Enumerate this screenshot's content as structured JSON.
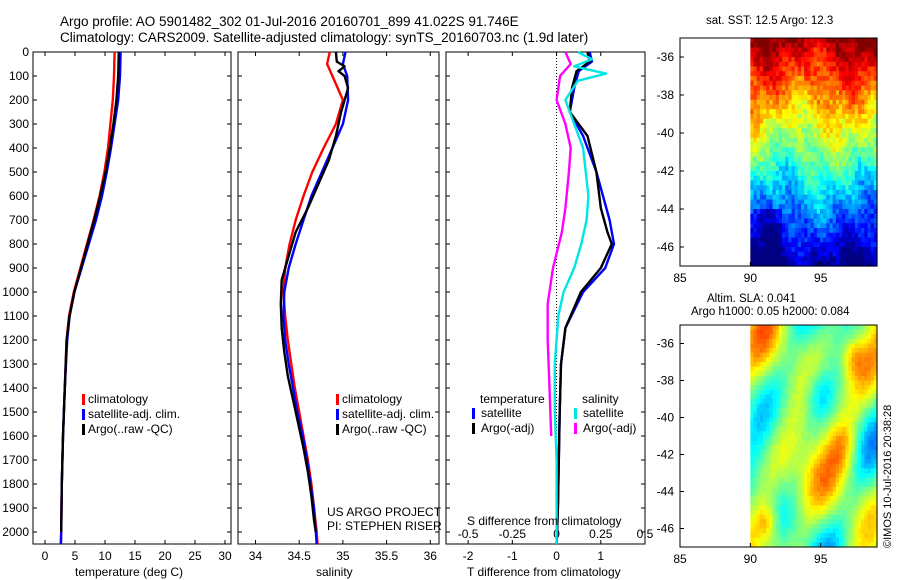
{
  "header": {
    "title_line1": "Argo profile: AO 5901482_302 01-Jul-2016 20160701_899 41.022S 91.746E",
    "title_line2": "Climatology: CARS2009. Satellite-adjusted climatology: synTS_20160703.nc (1.9d later)"
  },
  "colors": {
    "climatology": "#ff0000",
    "satellite": "#0000ff",
    "argo": "#000000",
    "salt_satellite": "#00e5e5",
    "salt_argo": "#ff00ff"
  },
  "chart_data": [
    {
      "id": "temperature",
      "type": "line",
      "xlabel": "temperature (deg C)",
      "ylabel": "",
      "xlim": [
        -2,
        31
      ],
      "ylim": [
        2050,
        0
      ],
      "xticks": [
        0,
        5,
        10,
        15,
        20,
        25,
        30
      ],
      "yticks": [
        0,
        100,
        200,
        300,
        400,
        500,
        600,
        700,
        800,
        900,
        1000,
        1100,
        1200,
        1300,
        1400,
        1500,
        1600,
        1700,
        1800,
        1900,
        2000
      ],
      "legend": [
        "climatology",
        "satellite-adj. clim.",
        "Argo(..raw -QC)"
      ],
      "series": [
        {
          "name": "climatology",
          "color": "#ff0000",
          "points": [
            [
              11.6,
              0
            ],
            [
              11.5,
              100
            ],
            [
              11.3,
              200
            ],
            [
              10.9,
              300
            ],
            [
              10.5,
              400
            ],
            [
              9.9,
              500
            ],
            [
              9.1,
              600
            ],
            [
              8.1,
              700
            ],
            [
              7.0,
              800
            ],
            [
              5.9,
              900
            ],
            [
              4.8,
              1000
            ],
            [
              4.0,
              1100
            ],
            [
              3.6,
              1200
            ],
            [
              3.3,
              1400
            ],
            [
              3.0,
              1600
            ],
            [
              2.8,
              1800
            ],
            [
              2.7,
              2000
            ],
            [
              2.65,
              2050
            ]
          ]
        },
        {
          "name": "satellite-adj. clim.",
          "color": "#0000ff",
          "points": [
            [
              12.6,
              0
            ],
            [
              12.5,
              100
            ],
            [
              12.2,
              200
            ],
            [
              11.6,
              300
            ],
            [
              11.0,
              400
            ],
            [
              10.3,
              500
            ],
            [
              9.5,
              600
            ],
            [
              8.5,
              700
            ],
            [
              7.3,
              800
            ],
            [
              6.1,
              900
            ],
            [
              4.9,
              1000
            ],
            [
              4.1,
              1100
            ],
            [
              3.7,
              1200
            ],
            [
              3.3,
              1400
            ],
            [
              3.0,
              1600
            ],
            [
              2.8,
              1800
            ],
            [
              2.7,
              2000
            ],
            [
              2.65,
              2050
            ]
          ]
        },
        {
          "name": "Argo(..raw -QC)",
          "color": "#000000",
          "points": [
            [
              12.3,
              0
            ],
            [
              12.2,
              100
            ],
            [
              11.9,
              200
            ],
            [
              11.4,
              300
            ],
            [
              10.8,
              400
            ],
            [
              10.1,
              500
            ],
            [
              9.2,
              600
            ],
            [
              8.2,
              700
            ],
            [
              7.1,
              800
            ],
            [
              6.0,
              900
            ],
            [
              4.9,
              1000
            ],
            [
              4.1,
              1100
            ],
            [
              3.6,
              1200
            ],
            [
              3.3,
              1400
            ],
            [
              3.0,
              1600
            ],
            [
              2.8,
              1800
            ],
            [
              2.7,
              2000
            ]
          ]
        }
      ]
    },
    {
      "id": "salinity",
      "type": "line",
      "xlabel": "salinity",
      "ylabel": "",
      "xlim": [
        33.8,
        36.1
      ],
      "ylim": [
        2050,
        0
      ],
      "xticks": [
        34,
        34.5,
        35,
        35.5,
        36
      ],
      "xticklabels": [
        "34",
        "34.5",
        "35",
        "35.5",
        "36"
      ],
      "legend": [
        "climatology",
        "satellite-adj. clim.",
        "Argo(..raw -QC)"
      ],
      "annotations": [
        "US ARGO PROJECT",
        "PI: STEPHEN RISER"
      ],
      "series": [
        {
          "name": "climatology",
          "color": "#ff0000",
          "points": [
            [
              34.85,
              0
            ],
            [
              34.82,
              50
            ],
            [
              34.88,
              100
            ],
            [
              35.0,
              200
            ],
            [
              34.92,
              300
            ],
            [
              34.78,
              400
            ],
            [
              34.65,
              500
            ],
            [
              34.55,
              600
            ],
            [
              34.46,
              700
            ],
            [
              34.39,
              800
            ],
            [
              34.34,
              900
            ],
            [
              34.32,
              1000
            ],
            [
              34.34,
              1100
            ],
            [
              34.37,
              1200
            ],
            [
              34.41,
              1300
            ],
            [
              34.45,
              1400
            ],
            [
              34.5,
              1500
            ],
            [
              34.55,
              1600
            ],
            [
              34.6,
              1700
            ],
            [
              34.64,
              1800
            ],
            [
              34.67,
              1900
            ],
            [
              34.7,
              2000
            ],
            [
              34.71,
              2050
            ]
          ]
        },
        {
          "name": "satellite-adj. clim.",
          "color": "#0000ff",
          "points": [
            [
              35.03,
              0
            ],
            [
              35.0,
              50
            ],
            [
              35.05,
              100
            ],
            [
              35.06,
              200
            ],
            [
              35.0,
              300
            ],
            [
              34.88,
              400
            ],
            [
              34.76,
              500
            ],
            [
              34.64,
              600
            ],
            [
              34.55,
              700
            ],
            [
              34.46,
              800
            ],
            [
              34.38,
              900
            ],
            [
              34.33,
              1000
            ],
            [
              34.32,
              1100
            ],
            [
              34.34,
              1200
            ],
            [
              34.38,
              1300
            ],
            [
              34.43,
              1400
            ],
            [
              34.48,
              1500
            ],
            [
              34.54,
              1600
            ],
            [
              34.59,
              1700
            ],
            [
              34.63,
              1800
            ],
            [
              34.67,
              1900
            ],
            [
              34.69,
              2000
            ],
            [
              34.7,
              2050
            ]
          ]
        },
        {
          "name": "Argo(..raw -QC)",
          "color": "#000000",
          "points": [
            [
              34.92,
              0
            ],
            [
              34.93,
              40
            ],
            [
              35.02,
              60
            ],
            [
              34.95,
              80
            ],
            [
              35.02,
              100
            ],
            [
              35.06,
              150
            ],
            [
              35.02,
              200
            ],
            [
              34.98,
              250
            ],
            [
              34.92,
              350
            ],
            [
              34.84,
              450
            ],
            [
              34.72,
              550
            ],
            [
              34.6,
              650
            ],
            [
              34.46,
              750
            ],
            [
              34.38,
              850
            ],
            [
              34.3,
              950
            ],
            [
              34.29,
              1050
            ],
            [
              34.3,
              1150
            ],
            [
              34.33,
              1250
            ],
            [
              34.37,
              1350
            ],
            [
              34.43,
              1450
            ],
            [
              34.49,
              1550
            ],
            [
              34.55,
              1650
            ],
            [
              34.6,
              1750
            ],
            [
              34.64,
              1850
            ],
            [
              34.67,
              1950
            ],
            [
              34.69,
              2000
            ]
          ]
        }
      ]
    },
    {
      "id": "differences",
      "type": "line",
      "xlabel": "T difference from climatology",
      "top_xlabel": "S difference from climatology",
      "xlim": [
        -2.5,
        2.0
      ],
      "ylim": [
        2050,
        0
      ],
      "xticks": [
        -2,
        -1,
        0,
        1
      ],
      "xticklabels": [
        "-2",
        "-1",
        "0",
        "1"
      ],
      "top_xticks": [
        -0.5,
        -0.25,
        0,
        0.25,
        0.5
      ],
      "top_xticklabels": [
        "-0.5",
        "-0.25",
        "0",
        "0.25",
        "0.5"
      ],
      "zero_line": "dotted",
      "legend_headers": [
        "temperature",
        "salinity"
      ],
      "legend_temperature": [
        "satellite",
        "Argo(-adj)"
      ],
      "legend_salinity": [
        "satellite",
        "Argo(-adj)"
      ],
      "series": [
        {
          "name": "temperature satellite",
          "color": "#0000ff",
          "units": "temperature",
          "points": [
            [
              0.75,
              0
            ],
            [
              0.8,
              40
            ],
            [
              0.5,
              80
            ],
            [
              0.4,
              150
            ],
            [
              0.3,
              250
            ],
            [
              0.6,
              350
            ],
            [
              0.9,
              500
            ],
            [
              1.2,
              700
            ],
            [
              1.3,
              800
            ],
            [
              1.1,
              900
            ],
            [
              0.6,
              1000
            ],
            [
              0.2,
              1150
            ],
            [
              0.1,
              1300
            ],
            [
              0.07,
              1500
            ],
            [
              0.05,
              1700
            ],
            [
              0.03,
              1900
            ],
            [
              0.0,
              2050
            ]
          ]
        },
        {
          "name": "temperature Argo(-adj)",
          "color": "#000000",
          "units": "temperature",
          "points": [
            [
              0.7,
              0
            ],
            [
              0.75,
              40
            ],
            [
              0.45,
              80
            ],
            [
              0.35,
              150
            ],
            [
              0.3,
              250
            ],
            [
              0.7,
              350
            ],
            [
              0.9,
              500
            ],
            [
              1.0,
              650
            ],
            [
              1.15,
              750
            ],
            [
              1.25,
              800
            ],
            [
              1.0,
              900
            ],
            [
              0.55,
              1000
            ],
            [
              0.2,
              1150
            ],
            [
              0.1,
              1300
            ],
            [
              0.07,
              1500
            ],
            [
              0.05,
              1700
            ],
            [
              0.03,
              1900
            ],
            [
              0.0,
              2050
            ]
          ]
        },
        {
          "name": "salinity satellite",
          "color": "#00e5e5",
          "units": "salinity",
          "points": [
            [
              0.12,
              0
            ],
            [
              0.2,
              30
            ],
            [
              0.1,
              60
            ],
            [
              0.28,
              90
            ],
            [
              0.12,
              120
            ],
            [
              0.05,
              200
            ],
            [
              0.1,
              300
            ],
            [
              0.15,
              400
            ],
            [
              0.18,
              600
            ],
            [
              0.17,
              700
            ],
            [
              0.14,
              800
            ],
            [
              0.1,
              900
            ],
            [
              0.04,
              1000
            ],
            [
              0.01,
              1100
            ],
            [
              -0.01,
              1300
            ],
            [
              -0.01,
              1500
            ],
            [
              0.0,
              1700
            ],
            [
              0.0,
              1900
            ],
            [
              0.0,
              2050
            ]
          ]
        },
        {
          "name": "salinity Argo(-adj)",
          "color": "#ff00ff",
          "units": "salinity",
          "points": [
            [
              0.05,
              0
            ],
            [
              0.08,
              50
            ],
            [
              0.02,
              100
            ],
            [
              0.0,
              200
            ],
            [
              0.05,
              300
            ],
            [
              0.08,
              400
            ],
            [
              0.07,
              500
            ],
            [
              0.05,
              650
            ],
            [
              0.03,
              750
            ],
            [
              -0.02,
              900
            ],
            [
              -0.05,
              1050
            ],
            [
              -0.05,
              1200
            ],
            [
              -0.04,
              1400
            ],
            [
              -0.03,
              1600
            ]
          ]
        }
      ]
    },
    {
      "id": "sst_map",
      "type": "heatmap",
      "title": "sat. SST: 12.5 Argo: 12.3",
      "xlim": [
        85,
        99
      ],
      "ylim": [
        -47,
        -35
      ],
      "xticks": [
        85,
        90,
        95
      ],
      "yticks": [
        -36,
        -38,
        -40,
        -42,
        -44,
        -46
      ],
      "data_lon_range": [
        90,
        99
      ],
      "data_lat_range": [
        -47,
        -35
      ],
      "value_range_note": "warm north (red) to cool south (blue)"
    },
    {
      "id": "sla_map",
      "type": "heatmap",
      "title": "Altim. SLA: 0.041",
      "subtitle": "Argo h1000: 0.05 h2000: 0.084",
      "xlim": [
        85,
        99
      ],
      "ylim": [
        -47,
        -35
      ],
      "xticks": [
        85,
        90,
        95
      ],
      "yticks": [
        -36,
        -38,
        -40,
        -42,
        -44,
        -46
      ],
      "data_lon_range": [
        90,
        99
      ],
      "data_lat_range": [
        -47,
        -35
      ]
    }
  ],
  "footer": {
    "stamp": "©IMOS 10-Jul-2016 20:38:28"
  }
}
